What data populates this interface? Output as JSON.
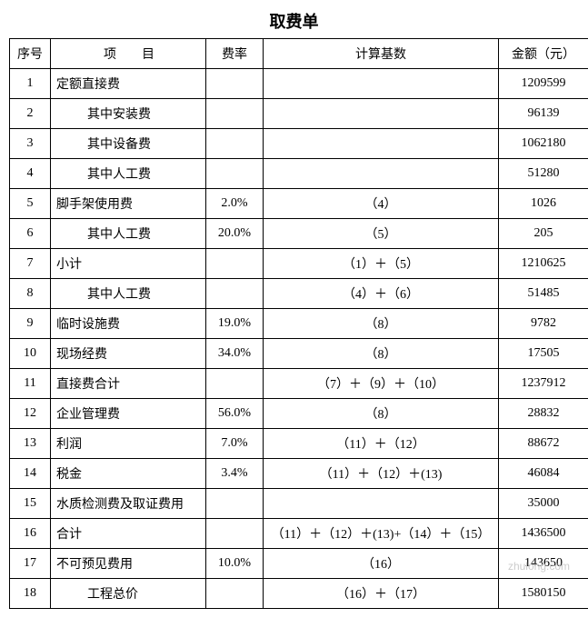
{
  "title": "取费单",
  "headers": {
    "seq": "序号",
    "item": "项　　目",
    "rate": "费率",
    "basis": "计算基数",
    "amount": "金额（元）"
  },
  "rows": [
    {
      "seq": "1",
      "item": "定额直接费",
      "indent": false,
      "rate": "",
      "basis": "",
      "amount": "1209599"
    },
    {
      "seq": "2",
      "item": "其中安装费",
      "indent": true,
      "rate": "",
      "basis": "",
      "amount": "96139"
    },
    {
      "seq": "3",
      "item": "其中设备费",
      "indent": true,
      "rate": "",
      "basis": "",
      "amount": "1062180"
    },
    {
      "seq": "4",
      "item": "其中人工费",
      "indent": true,
      "rate": "",
      "basis": "",
      "amount": "51280"
    },
    {
      "seq": "5",
      "item": "脚手架使用费",
      "indent": false,
      "rate": "2.0%",
      "basis": "（4）",
      "amount": "1026"
    },
    {
      "seq": "6",
      "item": "其中人工费",
      "indent": true,
      "rate": "20.0%",
      "basis": "（5）",
      "amount": "205"
    },
    {
      "seq": "7",
      "item": "小计",
      "indent": false,
      "rate": "",
      "basis": "（1）＋（5）",
      "amount": "1210625"
    },
    {
      "seq": "8",
      "item": "其中人工费",
      "indent": true,
      "rate": "",
      "basis": "（4）＋（6）",
      "amount": "51485"
    },
    {
      "seq": "9",
      "item": "临时设施费",
      "indent": false,
      "rate": "19.0%",
      "basis": "（8）",
      "amount": "9782"
    },
    {
      "seq": "10",
      "item": "现场经费",
      "indent": false,
      "rate": "34.0%",
      "basis": "（8）",
      "amount": "17505"
    },
    {
      "seq": "11",
      "item": "直接费合计",
      "indent": false,
      "rate": "",
      "basis": "（7）＋（9）＋（10）",
      "amount": "1237912"
    },
    {
      "seq": "12",
      "item": "企业管理费",
      "indent": false,
      "rate": "56.0%",
      "basis": "（8）",
      "amount": "28832"
    },
    {
      "seq": "13",
      "item": "利润",
      "indent": false,
      "rate": "7.0%",
      "basis": "（11）＋（12）",
      "amount": "88672"
    },
    {
      "seq": "14",
      "item": "税金",
      "indent": false,
      "rate": "3.4%",
      "basis": "（11）＋（12）＋(13)",
      "amount": "46084"
    },
    {
      "seq": "15",
      "item": "水质检测费及取证费用",
      "indent": false,
      "rate": "",
      "basis": "",
      "amount": "35000"
    },
    {
      "seq": "16",
      "item": "合计",
      "indent": false,
      "rate": "",
      "basis": "（11）＋（12）＋(13)+（14）＋（15）",
      "amount": "1436500"
    },
    {
      "seq": "17",
      "item": "不可预见费用",
      "indent": false,
      "rate": "10.0%",
      "basis": "（16）",
      "amount": "143650"
    },
    {
      "seq": "18",
      "item": "工程总价",
      "indent": true,
      "rate": "",
      "basis": "（16）＋（17）",
      "amount": "1580150"
    }
  ],
  "watermark": "zhulong.com"
}
